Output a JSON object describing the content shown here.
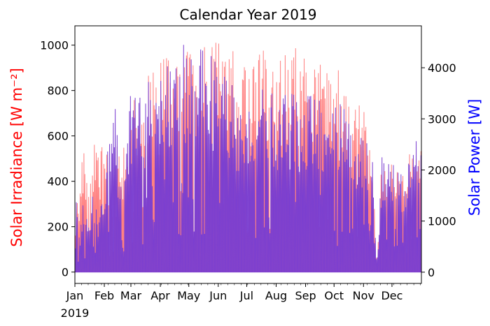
{
  "chart_data": {
    "type": "area",
    "title": "Calendar Year 2019",
    "xlabel": "",
    "x_range": [
      "2019-01-01",
      "2019-12-31"
    ],
    "x_ticks": [
      {
        "date": "2019-01-01",
        "label": "Jan",
        "sublabel": "2019"
      },
      {
        "date": "2019-02-01",
        "label": "Feb"
      },
      {
        "date": "2019-03-01",
        "label": "Mar"
      },
      {
        "date": "2019-04-01",
        "label": "Apr"
      },
      {
        "date": "2019-05-01",
        "label": "May"
      },
      {
        "date": "2019-06-01",
        "label": "Jun"
      },
      {
        "date": "2019-07-01",
        "label": "Jul"
      },
      {
        "date": "2019-08-01",
        "label": "Aug"
      },
      {
        "date": "2019-09-01",
        "label": "Sep"
      },
      {
        "date": "2019-10-01",
        "label": "Oct"
      },
      {
        "date": "2019-11-01",
        "label": "Nov"
      },
      {
        "date": "2019-12-01",
        "label": "Dec"
      }
    ],
    "y_left": {
      "label": "Solar Irradiance [W m⁻²]",
      "color": "#ff0000",
      "range": [
        -50,
        1085
      ],
      "ticks": [
        0,
        200,
        400,
        600,
        800,
        1000
      ]
    },
    "y_right": {
      "label": "Solar Power [W]",
      "color": "#0000ff",
      "range": [
        -220,
        4820
      ],
      "ticks": [
        0,
        1000,
        2000,
        3000,
        4000
      ]
    },
    "series": [
      {
        "axis": "left",
        "color": "#ff8080",
        "unit": "W m-2",
        "daily_peak": {
          "dates": [
            "2019-01-01",
            "2019-01-05",
            "2019-01-10",
            "2019-01-15",
            "2019-01-20",
            "2019-01-25",
            "2019-02-01",
            "2019-02-10",
            "2019-02-15",
            "2019-02-20",
            "2019-03-01",
            "2019-03-10",
            "2019-03-20",
            "2019-04-01",
            "2019-04-10",
            "2019-04-20",
            "2019-05-01",
            "2019-05-10",
            "2019-05-20",
            "2019-06-01",
            "2019-06-10",
            "2019-06-20",
            "2019-07-01",
            "2019-07-10",
            "2019-07-20",
            "2019-08-01",
            "2019-08-10",
            "2019-08-20",
            "2019-09-01",
            "2019-09-10",
            "2019-09-20",
            "2019-10-01",
            "2019-10-10",
            "2019-10-20",
            "2019-11-01",
            "2019-11-10",
            "2019-11-15",
            "2019-11-20",
            "2019-12-01",
            "2019-12-10",
            "2019-12-20",
            "2019-12-31"
          ],
          "values": [
            600,
            300,
            620,
            350,
            640,
            550,
            600,
            300,
            650,
            500,
            840,
            810,
            900,
            930,
            950,
            960,
            1020,
            1000,
            1010,
            1020,
            1030,
            1000,
            1000,
            990,
            980,
            990,
            1000,
            1000,
            990,
            970,
            920,
            930,
            860,
            800,
            720,
            560,
            20,
            480,
            520,
            440,
            560,
            580
          ]
        }
      },
      {
        "axis": "right",
        "color": "#7b3fd0",
        "unit": "W",
        "daily_peak": {
          "dates": [
            "2019-01-01",
            "2019-01-05",
            "2019-01-10",
            "2019-01-15",
            "2019-01-20",
            "2019-01-25",
            "2019-02-01",
            "2019-02-10",
            "2019-02-15",
            "2019-02-20",
            "2019-03-01",
            "2019-03-10",
            "2019-03-20",
            "2019-04-01",
            "2019-04-10",
            "2019-04-20",
            "2019-05-01",
            "2019-05-10",
            "2019-05-20",
            "2019-06-01",
            "2019-06-10",
            "2019-06-20",
            "2019-07-01",
            "2019-07-10",
            "2019-07-20",
            "2019-08-01",
            "2019-08-10",
            "2019-08-20",
            "2019-09-01",
            "2019-09-10",
            "2019-09-20",
            "2019-10-01",
            "2019-10-10",
            "2019-10-20",
            "2019-11-01",
            "2019-11-10",
            "2019-11-15",
            "2019-11-20",
            "2019-12-01",
            "2019-12-10",
            "2019-12-20",
            "2019-12-31"
          ],
          "values": [
            2400,
            600,
            1500,
            900,
            1800,
            1100,
            1500,
            3800,
            2600,
            1400,
            3600,
            3500,
            3800,
            4000,
            4200,
            4400,
            4500,
            4400,
            4300,
            4100,
            3900,
            3500,
            3500,
            3500,
            3600,
            3500,
            3600,
            3500,
            3600,
            3500,
            3400,
            3400,
            3300,
            2900,
            2800,
            2500,
            100,
            2400,
            2200,
            1900,
            2500,
            2600
          ]
        }
      }
    ]
  }
}
